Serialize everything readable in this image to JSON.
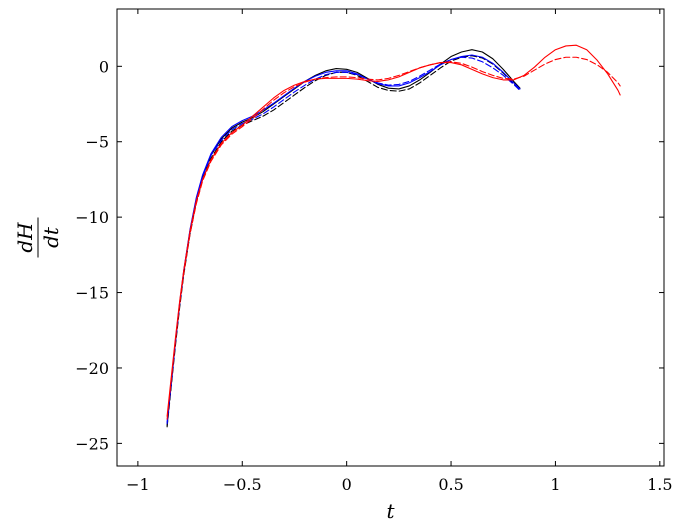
{
  "chart_data": {
    "type": "line",
    "xlabel": "t",
    "ylabel_numerator": "dH",
    "ylabel_denominator": "dt",
    "xlim": [
      -1.1,
      1.52
    ],
    "ylim": [
      -26.5,
      3.8
    ],
    "xticks": [
      -1,
      -0.5,
      0,
      0.5,
      1,
      1.5
    ],
    "yticks": [
      -25,
      -20,
      -15,
      -10,
      -5,
      0
    ],
    "xtick_labels": [
      "−1",
      "−0.5",
      "0",
      "0.5",
      "1",
      "1.5"
    ],
    "ytick_labels": [
      "−25",
      "−20",
      "−15",
      "−10",
      "−5",
      "0"
    ],
    "grid": false,
    "series": [
      {
        "color": "#000000",
        "style": "solid",
        "x": [
          -0.86,
          -0.84,
          -0.82,
          -0.8,
          -0.78,
          -0.75,
          -0.72,
          -0.69,
          -0.65,
          -0.6,
          -0.55,
          -0.5,
          -0.45,
          -0.4,
          -0.35,
          -0.3,
          -0.25,
          -0.2,
          -0.15,
          -0.1,
          -0.05,
          0.0,
          0.05,
          0.1,
          0.15,
          0.2,
          0.25,
          0.3,
          0.35,
          0.4,
          0.45,
          0.5,
          0.55,
          0.6,
          0.65,
          0.7,
          0.75,
          0.8,
          0.83
        ],
        "y": [
          -23.8,
          -21.0,
          -18.3,
          -15.8,
          -13.6,
          -10.9,
          -8.8,
          -7.3,
          -5.9,
          -4.8,
          -4.1,
          -3.7,
          -3.4,
          -3.0,
          -2.5,
          -2.0,
          -1.5,
          -1.0,
          -0.6,
          -0.3,
          -0.15,
          -0.2,
          -0.4,
          -0.8,
          -1.2,
          -1.45,
          -1.5,
          -1.3,
          -0.9,
          -0.4,
          0.15,
          0.65,
          0.95,
          1.1,
          0.95,
          0.5,
          -0.2,
          -1.0,
          -1.45
        ]
      },
      {
        "color": "#000000",
        "style": "dashed",
        "x": [
          -0.86,
          -0.84,
          -0.82,
          -0.8,
          -0.78,
          -0.75,
          -0.72,
          -0.69,
          -0.65,
          -0.6,
          -0.55,
          -0.5,
          -0.45,
          -0.4,
          -0.35,
          -0.3,
          -0.25,
          -0.2,
          -0.15,
          -0.1,
          -0.05,
          0.0,
          0.05,
          0.1,
          0.15,
          0.2,
          0.25,
          0.3,
          0.35,
          0.4,
          0.45,
          0.5,
          0.55,
          0.6,
          0.65,
          0.7,
          0.75,
          0.8,
          0.83
        ],
        "y": [
          -23.9,
          -21.2,
          -18.5,
          -16.0,
          -13.8,
          -11.1,
          -9.0,
          -7.5,
          -6.1,
          -5.0,
          -4.3,
          -3.9,
          -3.6,
          -3.3,
          -2.9,
          -2.4,
          -1.9,
          -1.4,
          -0.95,
          -0.6,
          -0.4,
          -0.4,
          -0.6,
          -1.0,
          -1.4,
          -1.6,
          -1.65,
          -1.5,
          -1.1,
          -0.6,
          -0.1,
          0.35,
          0.6,
          0.7,
          0.55,
          0.15,
          -0.45,
          -1.15,
          -1.6
        ]
      },
      {
        "color": "#0000ff",
        "style": "solid",
        "x": [
          -0.86,
          -0.84,
          -0.82,
          -0.8,
          -0.78,
          -0.75,
          -0.72,
          -0.69,
          -0.65,
          -0.6,
          -0.55,
          -0.5,
          -0.45,
          -0.4,
          -0.35,
          -0.3,
          -0.25,
          -0.2,
          -0.15,
          -0.1,
          -0.05,
          0.0,
          0.05,
          0.1,
          0.15,
          0.2,
          0.25,
          0.3,
          0.35,
          0.4,
          0.45,
          0.5,
          0.55,
          0.6,
          0.65,
          0.7,
          0.75,
          0.8,
          0.83
        ],
        "y": [
          -23.6,
          -20.9,
          -18.2,
          -15.7,
          -13.5,
          -10.8,
          -8.7,
          -7.2,
          -5.8,
          -4.7,
          -4.0,
          -3.6,
          -3.3,
          -2.9,
          -2.45,
          -1.95,
          -1.45,
          -1.0,
          -0.65,
          -0.4,
          -0.3,
          -0.3,
          -0.5,
          -0.85,
          -1.15,
          -1.3,
          -1.3,
          -1.1,
          -0.75,
          -0.35,
          0.1,
          0.45,
          0.65,
          0.75,
          0.6,
          0.2,
          -0.4,
          -1.1,
          -1.5
        ]
      },
      {
        "color": "#0000ff",
        "style": "dashed",
        "x": [
          -0.86,
          -0.84,
          -0.82,
          -0.8,
          -0.78,
          -0.75,
          -0.72,
          -0.69,
          -0.65,
          -0.6,
          -0.55,
          -0.5,
          -0.45,
          -0.4,
          -0.35,
          -0.3,
          -0.25,
          -0.2,
          -0.15,
          -0.1,
          -0.05,
          0.0,
          0.05,
          0.1,
          0.15,
          0.2,
          0.25,
          0.3,
          0.35,
          0.4,
          0.45,
          0.5,
          0.55,
          0.6,
          0.65,
          0.7,
          0.75,
          0.8,
          0.83
        ],
        "y": [
          -23.7,
          -21.0,
          -18.3,
          -15.8,
          -13.6,
          -10.9,
          -8.8,
          -7.3,
          -5.9,
          -4.9,
          -4.2,
          -3.8,
          -3.5,
          -3.15,
          -2.7,
          -2.2,
          -1.7,
          -1.25,
          -0.85,
          -0.55,
          -0.4,
          -0.4,
          -0.55,
          -0.85,
          -1.1,
          -1.25,
          -1.2,
          -1.0,
          -0.65,
          -0.25,
          0.15,
          0.45,
          0.6,
          0.55,
          0.3,
          -0.1,
          -0.6,
          -1.2,
          -1.6
        ]
      },
      {
        "color": "#ff0000",
        "style": "solid",
        "x": [
          -0.86,
          -0.84,
          -0.82,
          -0.8,
          -0.78,
          -0.75,
          -0.72,
          -0.69,
          -0.65,
          -0.6,
          -0.55,
          -0.5,
          -0.45,
          -0.4,
          -0.35,
          -0.3,
          -0.25,
          -0.2,
          -0.15,
          -0.1,
          -0.05,
          0.0,
          0.05,
          0.1,
          0.15,
          0.2,
          0.25,
          0.3,
          0.35,
          0.4,
          0.45,
          0.5,
          0.55,
          0.6,
          0.65,
          0.7,
          0.75,
          0.8,
          0.85,
          0.9,
          0.95,
          1.0,
          1.05,
          1.1,
          1.15,
          1.2,
          1.25,
          1.3,
          1.31
        ],
        "y": [
          -23.2,
          -20.6,
          -18.0,
          -15.6,
          -13.5,
          -10.9,
          -8.9,
          -7.5,
          -6.2,
          -5.1,
          -4.4,
          -3.9,
          -3.3,
          -2.7,
          -2.1,
          -1.6,
          -1.25,
          -1.0,
          -0.85,
          -0.8,
          -0.8,
          -0.8,
          -0.85,
          -0.95,
          -1.0,
          -0.9,
          -0.7,
          -0.4,
          -0.1,
          0.1,
          0.25,
          0.25,
          0.1,
          -0.2,
          -0.5,
          -0.75,
          -0.9,
          -0.9,
          -0.6,
          -0.05,
          0.6,
          1.1,
          1.35,
          1.4,
          1.1,
          0.4,
          -0.5,
          -1.6,
          -1.9
        ]
      },
      {
        "color": "#ff0000",
        "style": "dashed",
        "x": [
          -0.86,
          -0.84,
          -0.82,
          -0.8,
          -0.78,
          -0.75,
          -0.72,
          -0.69,
          -0.65,
          -0.6,
          -0.55,
          -0.5,
          -0.45,
          -0.4,
          -0.35,
          -0.3,
          -0.25,
          -0.2,
          -0.15,
          -0.1,
          -0.05,
          0.0,
          0.05,
          0.1,
          0.15,
          0.2,
          0.25,
          0.3,
          0.35,
          0.4,
          0.45,
          0.5,
          0.55,
          0.6,
          0.65,
          0.7,
          0.75,
          0.8,
          0.85,
          0.9,
          0.95,
          1.0,
          1.05,
          1.1,
          1.15,
          1.2,
          1.25,
          1.3,
          1.31
        ],
        "y": [
          -23.4,
          -20.8,
          -18.2,
          -15.8,
          -13.7,
          -11.1,
          -9.1,
          -7.6,
          -6.3,
          -5.2,
          -4.5,
          -4.0,
          -3.45,
          -2.85,
          -2.25,
          -1.75,
          -1.35,
          -1.05,
          -0.85,
          -0.75,
          -0.7,
          -0.7,
          -0.75,
          -0.85,
          -0.9,
          -0.8,
          -0.6,
          -0.35,
          -0.1,
          0.1,
          0.25,
          0.3,
          0.2,
          -0.05,
          -0.35,
          -0.6,
          -0.8,
          -0.85,
          -0.65,
          -0.25,
          0.15,
          0.45,
          0.6,
          0.6,
          0.45,
          0.1,
          -0.4,
          -1.1,
          -1.3
        ]
      }
    ]
  }
}
